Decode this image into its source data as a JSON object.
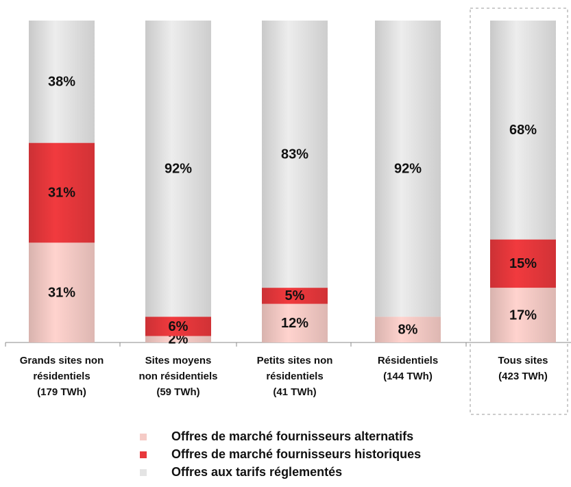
{
  "chart_data": {
    "type": "stacked_bar",
    "categories": [
      [
        "Grands sites non",
        "résidentiels",
        "(179 TWh)"
      ],
      [
        "Sites moyens",
        "non résidentiels",
        "(59 TWh)"
      ],
      [
        "Petits sites non",
        "résidentiels",
        "(41 TWh)"
      ],
      [
        "Résidentiels",
        "(144 TWh)"
      ],
      [
        "Tous sites",
        "(423 TWh)"
      ]
    ],
    "series": [
      {
        "name": "Offres de marché fournisseurs alternatifs",
        "color": "#f5cbc6",
        "values": [
          31,
          2,
          12,
          8,
          17
        ],
        "value_labels": [
          "31%",
          "2%",
          "12%",
          "8%",
          "17%"
        ]
      },
      {
        "name": "Offres de marché fournisseurs historiques",
        "color": "#e8383c",
        "values": [
          31,
          6,
          5,
          0,
          15
        ],
        "value_labels": [
          "31%",
          "6%",
          "5%",
          null,
          "15%"
        ]
      },
      {
        "name": "Offres aux tarifs réglementés",
        "color": "#e4e4e4",
        "values": [
          38,
          92,
          83,
          92,
          68
        ],
        "value_labels": [
          "38%",
          "92%",
          "83%",
          "92%",
          "68%"
        ]
      }
    ],
    "ylim": [
      0,
      100
    ]
  }
}
